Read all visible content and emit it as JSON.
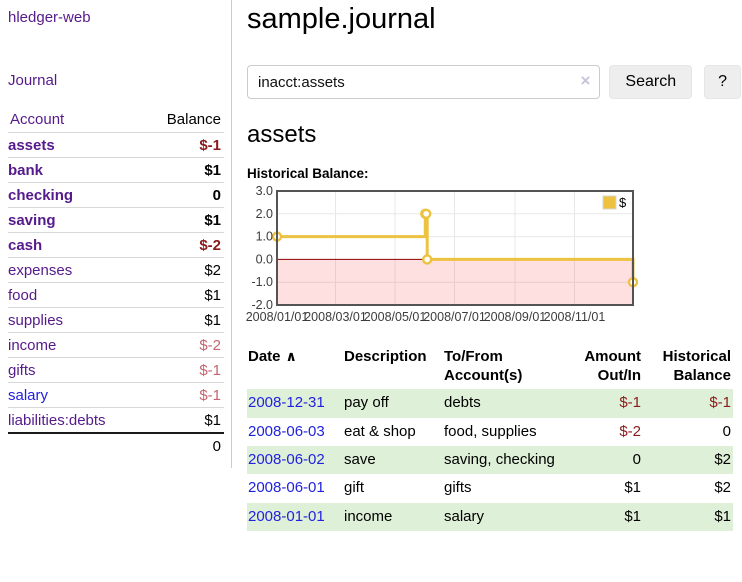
{
  "app": {
    "brand": "hledger-web",
    "nav_journal": "Journal"
  },
  "sidebar": {
    "accounts_header": "Account",
    "balance_header": "Balance",
    "rows": [
      {
        "name": "assets",
        "depth": 1,
        "balance": "$-1",
        "bold": true,
        "name_color": "purple",
        "balance_color": "neg-strong"
      },
      {
        "name": "bank",
        "depth": 2,
        "balance": "$1",
        "bold": true,
        "name_color": "purple",
        "balance_color": "black"
      },
      {
        "name": "checking",
        "depth": 3,
        "balance": "0",
        "bold": true,
        "name_color": "purple",
        "balance_color": "black"
      },
      {
        "name": "saving",
        "depth": 3,
        "balance": "$1",
        "bold": true,
        "name_color": "purple",
        "balance_color": "black"
      },
      {
        "name": "cash",
        "depth": 2,
        "balance": "$-2",
        "bold": true,
        "name_color": "purple",
        "balance_color": "neg-strong"
      },
      {
        "name": "expenses",
        "depth": 1,
        "balance": "$2",
        "bold": false,
        "name_color": "purple",
        "balance_color": "black"
      },
      {
        "name": "food",
        "depth": 2,
        "balance": "$1",
        "bold": false,
        "name_color": "purple",
        "balance_color": "black"
      },
      {
        "name": "supplies",
        "depth": 2,
        "balance": "$1",
        "bold": false,
        "name_color": "purple",
        "balance_color": "black"
      },
      {
        "name": "income",
        "depth": 1,
        "balance": "$-2",
        "bold": false,
        "name_color": "purple",
        "balance_color": "neg-soft"
      },
      {
        "name": "gifts",
        "depth": 2,
        "balance": "$-1",
        "bold": false,
        "name_color": "purple",
        "balance_color": "neg-soft"
      },
      {
        "name": "salary",
        "depth": 2,
        "balance": "$-1",
        "bold": false,
        "name_color": "blue",
        "balance_color": "neg-soft"
      },
      {
        "name": "liabilities:debts",
        "depth": 1,
        "balance": "$1",
        "bold": false,
        "name_color": "purple",
        "balance_color": "black"
      }
    ],
    "total": "0"
  },
  "header": {
    "title": "sample.journal"
  },
  "search": {
    "value": "inacct:assets",
    "clear_icon": "×",
    "button_label": "Search",
    "help_label": "?"
  },
  "main": {
    "account_title": "assets",
    "chart_label": "Historical Balance:"
  },
  "chart_data": {
    "type": "line",
    "step": true,
    "title": "Historical Balance:",
    "series": [
      {
        "name": "$",
        "color": "#edc240",
        "points": [
          [
            "2008-01-01",
            1
          ],
          [
            "2008-06-01",
            2
          ],
          [
            "2008-06-02",
            2
          ],
          [
            "2008-06-03",
            0
          ],
          [
            "2008-12-31",
            -1
          ]
        ]
      }
    ],
    "x_range": [
      "2008-01-01",
      "2008-12-31"
    ],
    "ylim": [
      -2,
      3
    ],
    "yticks": [
      3,
      2,
      1,
      0,
      -1,
      -2
    ],
    "xticks": [
      {
        "label": "2008/01/01",
        "date": "2008-01-01"
      },
      {
        "label": "2008/03/01",
        "date": "2008-03-01"
      },
      {
        "label": "2008/05/01",
        "date": "2008-05-01"
      },
      {
        "label": "2008/07/01",
        "date": "2008-07-01"
      },
      {
        "label": "2008/09/01",
        "date": "2008-09-01"
      },
      {
        "label": "2008/11/01",
        "date": "2008-11-01"
      }
    ],
    "legend": "$",
    "legend_position": "top-right",
    "grid": true,
    "grid_color": "#e8e8e8",
    "plot_border_color": "#545454",
    "zero_line_color": "#8b0000",
    "negative_region_color": "rgba(255,0,0,0.12)"
  },
  "register": {
    "headers": [
      {
        "label": "Date",
        "sort": "∧",
        "align": "left"
      },
      {
        "label": "Description",
        "align": "left"
      },
      {
        "label": "To/From Account(s)",
        "align": "left"
      },
      {
        "label": "Amount Out/In",
        "align": "right"
      },
      {
        "label": "Historical Balance",
        "align": "right"
      }
    ],
    "rows": [
      {
        "date": "2008-12-31",
        "description": "pay off",
        "accounts": "debts",
        "amount": "$-1",
        "balance": "$-1",
        "amount_neg": true,
        "balance_neg": true
      },
      {
        "date": "2008-06-03",
        "description": "eat & shop",
        "accounts": "food, supplies",
        "amount": "$-2",
        "balance": "0",
        "amount_neg": true,
        "balance_neg": false
      },
      {
        "date": "2008-06-02",
        "description": "save",
        "accounts": "saving, checking",
        "amount": "0",
        "balance": "$2",
        "amount_neg": false,
        "balance_neg": false
      },
      {
        "date": "2008-06-01",
        "description": "gift",
        "accounts": "gifts",
        "amount": "$1",
        "balance": "$2",
        "amount_neg": false,
        "balance_neg": false
      },
      {
        "date": "2008-01-01",
        "description": "income",
        "accounts": "salary",
        "amount": "$1",
        "balance": "$1",
        "amount_neg": false,
        "balance_neg": false
      }
    ]
  }
}
